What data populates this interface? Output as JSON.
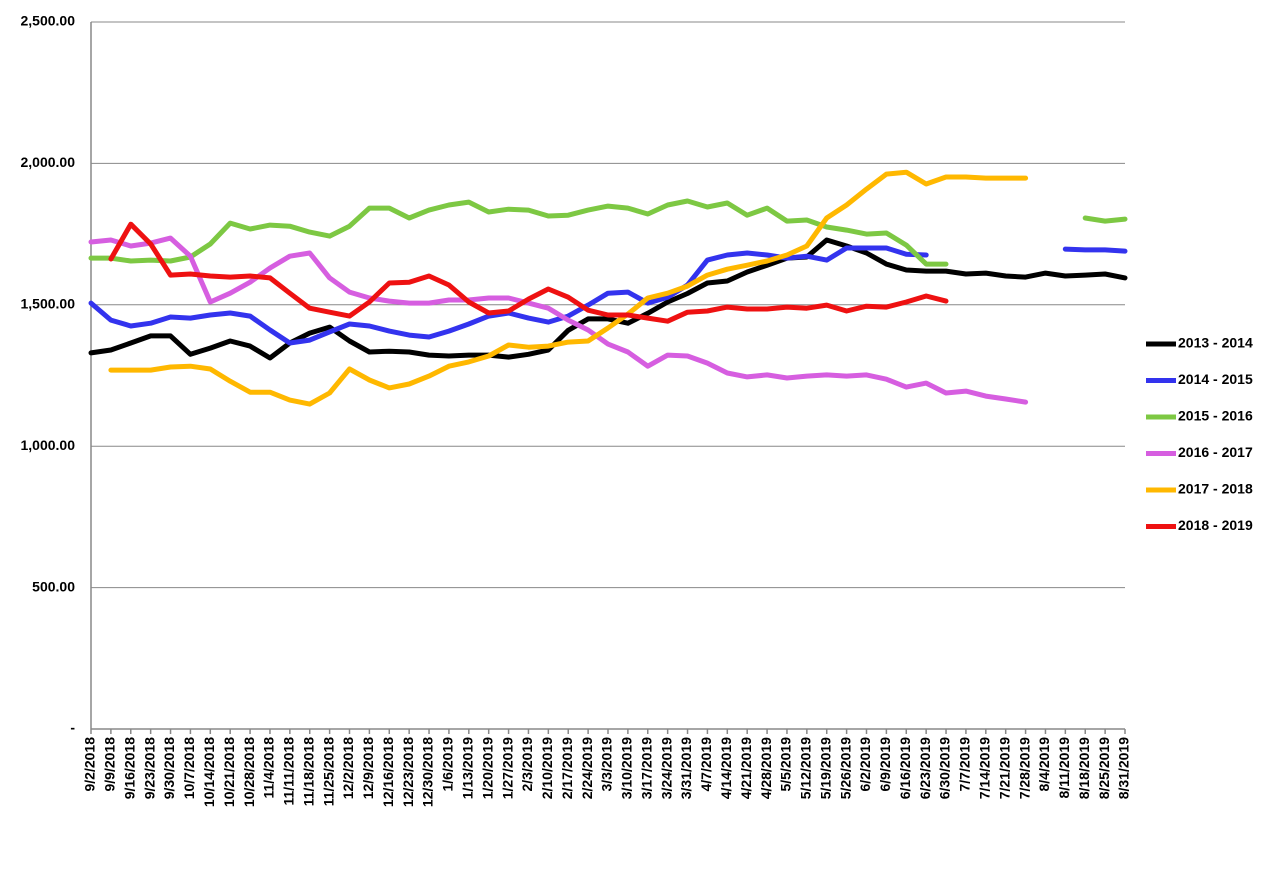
{
  "chart_data": {
    "type": "line",
    "categories": [
      "9/2/2018",
      "9/9/2018",
      "9/16/2018",
      "9/23/2018",
      "9/30/2018",
      "10/7/2018",
      "10/14/2018",
      "10/21/2018",
      "10/28/2018",
      "11/4/2018",
      "11/11/2018",
      "11/18/2018",
      "11/25/2018",
      "12/2/2018",
      "12/9/2018",
      "12/16/2018",
      "12/23/2018",
      "12/30/2018",
      "1/6/2019",
      "1/13/2019",
      "1/20/2019",
      "1/27/2019",
      "2/3/2019",
      "2/10/2019",
      "2/17/2019",
      "2/24/2019",
      "3/3/2019",
      "3/10/2019",
      "3/17/2019",
      "3/24/2019",
      "3/31/2019",
      "4/7/2019",
      "4/14/2019",
      "4/21/2019",
      "4/28/2019",
      "5/5/2019",
      "5/12/2019",
      "5/19/2019",
      "5/26/2019",
      "6/2/2019",
      "6/9/2019",
      "6/16/2019",
      "6/23/2019",
      "6/30/2019",
      "7/7/2019",
      "7/14/2019",
      "7/21/2019",
      "7/28/2019",
      "8/4/2019",
      "8/11/2019",
      "8/18/2019",
      "8/25/2019",
      "8/31/2019"
    ],
    "series": [
      {
        "name": "2013 - 2014",
        "color": "#000000",
        "values": [
          1330,
          1340,
          1365,
          1390,
          1390,
          1325,
          1347,
          1372,
          1354,
          1312,
          1365,
          1400,
          1421,
          1372,
          1333,
          1336,
          1333,
          1322,
          1319,
          1322,
          1322,
          1315,
          1325,
          1340,
          1410,
          1450,
          1450,
          1435,
          1470,
          1510,
          1540,
          1577,
          1584,
          1616,
          1640,
          1665,
          1669,
          1729,
          1708,
          1683,
          1644,
          1623,
          1619,
          1619,
          1609,
          1612,
          1602,
          1598,
          1612,
          1602,
          1605,
          1609,
          1595
        ]
      },
      {
        "name": "2014 - 2015",
        "color": "#3333ee",
        "values": [
          1506,
          1446,
          1425,
          1435,
          1457,
          1453,
          1464,
          1471,
          1460,
          1411,
          1365,
          1375,
          1404,
          1432,
          1425,
          1407,
          1393,
          1386,
          1407,
          1432,
          1460,
          1471,
          1453,
          1439,
          1460,
          1499,
          1541,
          1545,
          1506,
          1527,
          1570,
          1658,
          1676,
          1683,
          1676,
          1665,
          1672,
          1658,
          1701,
          1701,
          1701,
          1679,
          1676,
          null,
          null,
          null,
          null,
          null,
          null,
          1697,
          1694,
          1694,
          1690
        ]
      },
      {
        "name": "2015 - 2016",
        "color": "#7dc843",
        "values": [
          1665,
          1665,
          1655,
          1658,
          1655,
          1669,
          1715,
          1789,
          1768,
          1782,
          1778,
          1757,
          1743,
          1778,
          1842,
          1842,
          1807,
          1835,
          1853,
          1863,
          1828,
          1838,
          1835,
          1814,
          1817,
          1835,
          1849,
          1842,
          1821,
          1853,
          1867,
          1846,
          1860,
          1817,
          1842,
          1796,
          1800,
          1775,
          1764,
          1750,
          1754,
          1711,
          1644,
          1644,
          null,
          null,
          null,
          null,
          null,
          null,
          1807,
          1796,
          1803
        ]
      },
      {
        "name": "2016 - 2017",
        "color": "#d65ee0",
        "values": [
          1722,
          1729,
          1708,
          1718,
          1736,
          1672,
          1510,
          1541,
          1580,
          1630,
          1672,
          1683,
          1595,
          1545,
          1524,
          1513,
          1506,
          1506,
          1517,
          1517,
          1524,
          1524,
          1506,
          1488,
          1446,
          1411,
          1361,
          1333,
          1283,
          1322,
          1319,
          1294,
          1259,
          1245,
          1252,
          1241,
          1248,
          1252,
          1248,
          1252,
          1237,
          1209,
          1223,
          1188,
          1195,
          1177,
          1167,
          1156,
          null,
          null,
          null,
          null,
          null
        ]
      },
      {
        "name": "2017 - 2018",
        "color": "#ffb800",
        "values": [
          null,
          1269,
          1269,
          1269,
          1280,
          1283,
          1273,
          1230,
          1191,
          1191,
          1163,
          1149,
          1188,
          1273,
          1234,
          1206,
          1220,
          1248,
          1283,
          1298,
          1319,
          1358,
          1350,
          1354,
          1368,
          1372,
          1418,
          1467,
          1524,
          1541,
          1566,
          1605,
          1626,
          1640,
          1655,
          1676,
          1708,
          1807,
          1853,
          1909,
          1962,
          1969,
          1927,
          1952,
          1952,
          1948,
          1948,
          1948,
          null,
          null,
          null,
          null,
          null
        ]
      },
      {
        "name": "2018 - 2019",
        "color": "#ee1111",
        "values": [
          null,
          1662,
          1785,
          1715,
          1605,
          1609,
          1602,
          1598,
          1602,
          1595,
          1541,
          1488,
          1474,
          1460,
          1510,
          1577,
          1580,
          1602,
          1570,
          1510,
          1471,
          1478,
          1520,
          1556,
          1527,
          1481,
          1464,
          1464,
          1453,
          1442,
          1474,
          1478,
          1492,
          1485,
          1485,
          1492,
          1488,
          1499,
          1478,
          1495,
          1492,
          1510,
          1531,
          1513,
          null,
          null,
          null,
          null,
          null,
          null,
          null,
          null,
          null
        ]
      }
    ],
    "ylim": [
      0,
      2500
    ],
    "yticks": [
      {
        "value": 0,
        "label": "-"
      },
      {
        "value": 500,
        "label": "500.00"
      },
      {
        "value": 1000,
        "label": "1,000.00"
      },
      {
        "value": 1500,
        "label": "1,500.00"
      },
      {
        "value": 2000,
        "label": "2,000.00"
      },
      {
        "value": 2500,
        "label": "2,500.00"
      }
    ],
    "grid": true,
    "legend": "right"
  }
}
